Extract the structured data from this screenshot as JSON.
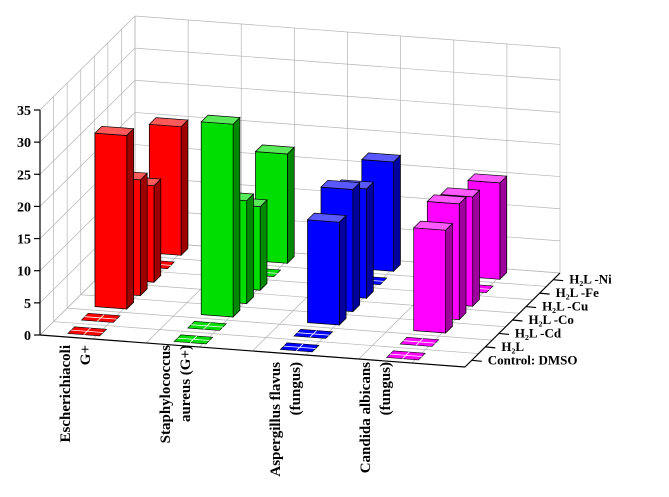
{
  "chart_data": {
    "type": "bar3d",
    "title": "",
    "xlabel": "",
    "ylabel": "",
    "zlabel": "",
    "zlim": [
      0,
      35
    ],
    "z_ticks": [
      "0",
      "5",
      "10",
      "15",
      "20",
      "25",
      "30",
      "35"
    ],
    "categories": [
      [
        "Escherichiacoli",
        "G+"
      ],
      [
        "Staphylococcus",
        "aureus (G+)"
      ],
      [
        "Aspergillus flavus",
        "(fungus)"
      ],
      [
        "Candida albicans",
        "(fungus)"
      ]
    ],
    "series_labels": [
      "Control: DMSO",
      "H₂L",
      "H₂L -Cd",
      "H₂L -Co",
      "H₂L -Cu",
      "H₂L -Fe",
      "H₂L -Ni"
    ],
    "colors": [
      "#ff0000",
      "#00dd00",
      "#0000ff",
      "#ff00ff"
    ],
    "grid": true,
    "values": [
      [
        0,
        0,
        27,
        18,
        15,
        0,
        20
      ],
      [
        0,
        0,
        30,
        16,
        13,
        0,
        17
      ],
      [
        0,
        0,
        16,
        19,
        17,
        0,
        17
      ],
      [
        0,
        0,
        16,
        18,
        17,
        0,
        15
      ]
    ]
  }
}
